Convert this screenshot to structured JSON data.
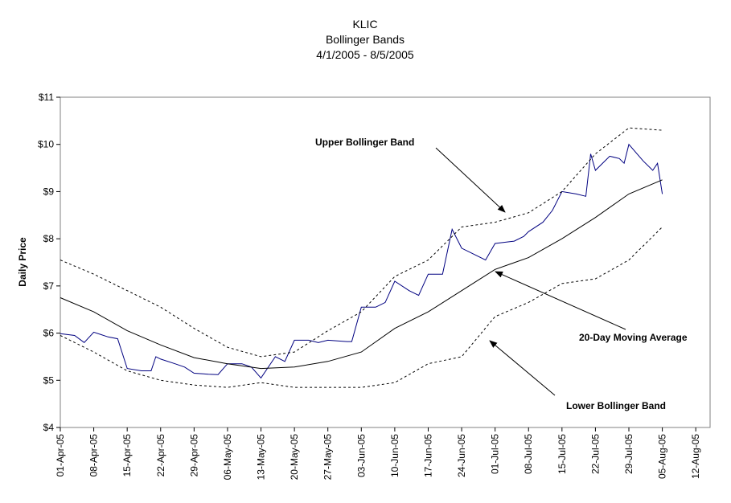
{
  "chart_data": {
    "type": "line",
    "title": "KLIC",
    "subtitle": [
      "Bollinger Bands",
      "4/1/2005 - 8/5/2005"
    ],
    "y_label": "Daily Price",
    "annotations": [
      "Upper Bollinger Band",
      "20-Day Moving Average",
      "Lower Bollinger Band"
    ],
    "xlim": [
      "2005-04-01",
      "2005-08-15"
    ],
    "xticks": [
      {
        "value": "2005-04-01",
        "label": "01-Apr-05"
      },
      {
        "value": "2005-04-08",
        "label": "08-Apr-05"
      },
      {
        "value": "2005-04-15",
        "label": "15-Apr-05"
      },
      {
        "value": "2005-04-22",
        "label": "22-Apr-05"
      },
      {
        "value": "2005-04-29",
        "label": "29-Apr-05"
      },
      {
        "value": "2005-05-06",
        "label": "06-May-05"
      },
      {
        "value": "2005-05-13",
        "label": "13-May-05"
      },
      {
        "value": "2005-05-20",
        "label": "20-May-05"
      },
      {
        "value": "2005-05-27",
        "label": "27-May-05"
      },
      {
        "value": "2005-06-03",
        "label": "03-Jun-05"
      },
      {
        "value": "2005-06-10",
        "label": "10-Jun-05"
      },
      {
        "value": "2005-06-17",
        "label": "17-Jun-05"
      },
      {
        "value": "2005-06-24",
        "label": "24-Jun-05"
      },
      {
        "value": "2005-07-01",
        "label": "01-Jul-05"
      },
      {
        "value": "2005-07-08",
        "label": "08-Jul-05"
      },
      {
        "value": "2005-07-15",
        "label": "15-Jul-05"
      },
      {
        "value": "2005-07-22",
        "label": "22-Jul-05"
      },
      {
        "value": "2005-07-29",
        "label": "29-Jul-05"
      },
      {
        "value": "2005-08-05",
        "label": "05-Aug-05"
      },
      {
        "value": "2005-08-12",
        "label": "12-Aug-05"
      }
    ],
    "ylim": [
      4,
      11
    ],
    "yticks": [
      {
        "value": 4,
        "label": "$4"
      },
      {
        "value": 5,
        "label": "$5"
      },
      {
        "value": 6,
        "label": "$6"
      },
      {
        "value": 7,
        "label": "$7"
      },
      {
        "value": 8,
        "label": "$8"
      },
      {
        "value": 9,
        "label": "$9"
      },
      {
        "value": 10,
        "label": "$10"
      },
      {
        "value": 11,
        "label": "$11"
      }
    ],
    "series": [
      {
        "color": "#000080",
        "dash": false,
        "x": [
          "2005-04-01",
          "2005-04-04",
          "2005-04-06",
          "2005-04-08",
          "2005-04-11",
          "2005-04-13",
          "2005-04-15",
          "2005-04-18",
          "2005-04-20",
          "2005-04-21",
          "2005-04-22",
          "2005-04-25",
          "2005-04-27",
          "2005-04-29",
          "2005-05-02",
          "2005-05-04",
          "2005-05-06",
          "2005-05-09",
          "2005-05-11",
          "2005-05-13",
          "2005-05-16",
          "2005-05-18",
          "2005-05-20",
          "2005-05-23",
          "2005-05-25",
          "2005-05-27",
          "2005-05-31",
          "2005-06-01",
          "2005-06-03",
          "2005-06-06",
          "2005-06-08",
          "2005-06-10",
          "2005-06-13",
          "2005-06-15",
          "2005-06-17",
          "2005-06-20",
          "2005-06-22",
          "2005-06-24",
          "2005-06-27",
          "2005-06-29",
          "2005-07-01",
          "2005-07-05",
          "2005-07-07",
          "2005-07-08",
          "2005-07-11",
          "2005-07-13",
          "2005-07-15",
          "2005-07-18",
          "2005-07-20",
          "2005-07-21",
          "2005-07-22",
          "2005-07-25",
          "2005-07-27",
          "2005-07-28",
          "2005-07-29",
          "2005-08-01",
          "2005-08-03",
          "2005-08-04",
          "2005-08-05"
        ],
        "values": [
          5.99,
          5.95,
          5.8,
          6.02,
          5.92,
          5.88,
          5.25,
          5.2,
          5.2,
          5.5,
          5.45,
          5.35,
          5.28,
          5.15,
          5.13,
          5.12,
          5.35,
          5.35,
          5.28,
          5.05,
          5.5,
          5.4,
          5.85,
          5.85,
          5.8,
          5.85,
          5.82,
          5.82,
          6.55,
          6.55,
          6.65,
          7.1,
          6.9,
          6.8,
          7.25,
          7.25,
          8.2,
          7.8,
          7.65,
          7.55,
          7.9,
          7.95,
          8.05,
          8.15,
          8.35,
          8.6,
          9.0,
          8.95,
          8.9,
          9.8,
          9.45,
          9.75,
          9.7,
          9.6,
          10.0,
          9.65,
          9.45,
          9.6,
          8.95
        ]
      },
      {
        "color": "#000000",
        "dash": false,
        "x": [
          "2005-04-01",
          "2005-04-08",
          "2005-04-15",
          "2005-04-22",
          "2005-04-29",
          "2005-05-06",
          "2005-05-13",
          "2005-05-20",
          "2005-05-27",
          "2005-06-03",
          "2005-06-10",
          "2005-06-17",
          "2005-06-24",
          "2005-07-01",
          "2005-07-08",
          "2005-07-15",
          "2005-07-22",
          "2005-07-29",
          "2005-08-05"
        ],
        "values": [
          6.75,
          6.45,
          6.05,
          5.75,
          5.48,
          5.35,
          5.25,
          5.28,
          5.4,
          5.6,
          6.1,
          6.45,
          6.9,
          7.35,
          7.6,
          8.0,
          8.45,
          8.95,
          9.25
        ]
      },
      {
        "color": "#000000",
        "dash": true,
        "x": [
          "2005-04-01",
          "2005-04-08",
          "2005-04-15",
          "2005-04-22",
          "2005-04-29",
          "2005-05-06",
          "2005-05-13",
          "2005-05-20",
          "2005-05-27",
          "2005-06-03",
          "2005-06-10",
          "2005-06-17",
          "2005-06-24",
          "2005-07-01",
          "2005-07-08",
          "2005-07-15",
          "2005-07-22",
          "2005-07-29",
          "2005-08-05"
        ],
        "values": [
          7.55,
          7.25,
          6.9,
          6.55,
          6.1,
          5.7,
          5.5,
          5.6,
          6.05,
          6.45,
          7.2,
          7.55,
          8.25,
          8.35,
          8.55,
          9.0,
          9.8,
          10.35,
          10.3
        ]
      },
      {
        "color": "#000000",
        "dash": true,
        "x": [
          "2005-04-01",
          "2005-04-08",
          "2005-04-15",
          "2005-04-22",
          "2005-04-29",
          "2005-05-06",
          "2005-05-13",
          "2005-05-20",
          "2005-05-27",
          "2005-06-03",
          "2005-06-10",
          "2005-06-17",
          "2005-06-24",
          "2005-07-01",
          "2005-07-08",
          "2005-07-15",
          "2005-07-22",
          "2005-07-29",
          "2005-08-05"
        ],
        "values": [
          5.95,
          5.6,
          5.2,
          5.0,
          4.9,
          4.85,
          4.95,
          4.85,
          4.85,
          4.85,
          4.95,
          5.35,
          5.5,
          6.35,
          6.65,
          7.05,
          7.15,
          7.55,
          8.25
        ]
      }
    ]
  }
}
